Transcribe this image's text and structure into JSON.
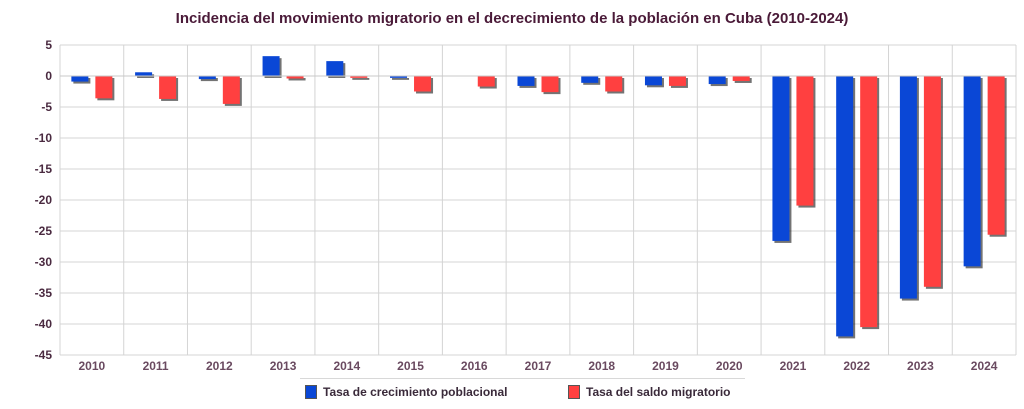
{
  "chart_data": {
    "type": "bar",
    "title": "Incidencia del movimiento migratorio en el decrecimiento de la población en Cuba (2010-2024)",
    "xlabel": "",
    "ylabel": "",
    "ylim": [
      -45,
      5
    ],
    "yticks": [
      5,
      0,
      -5,
      -10,
      -15,
      -20,
      -25,
      -30,
      -35,
      -40,
      -45
    ],
    "grid": true,
    "legend_position": "bottom",
    "categories": [
      "2010",
      "2011",
      "2012",
      "2013",
      "2014",
      "2015",
      "2016",
      "2017",
      "2018",
      "2019",
      "2020",
      "2021",
      "2022",
      "2023",
      "2024"
    ],
    "series": [
      {
        "name": "Tasa de crecimiento poblacional",
        "color": "#0a47d6",
        "values": [
          -0.9,
          0.6,
          -0.5,
          3.2,
          2.4,
          -0.3,
          0.0,
          -1.6,
          -1.1,
          -1.5,
          -1.3,
          -26.6,
          -42.0,
          -35.9,
          -30.7
        ]
      },
      {
        "name": "Tasa del saldo migratorio",
        "color": "#ff4040",
        "values": [
          -3.6,
          -3.7,
          -4.5,
          -0.4,
          -0.3,
          -2.5,
          -1.7,
          -2.6,
          -2.5,
          -1.6,
          -0.8,
          -20.9,
          -40.5,
          -34.0,
          -25.6
        ]
      }
    ]
  }
}
